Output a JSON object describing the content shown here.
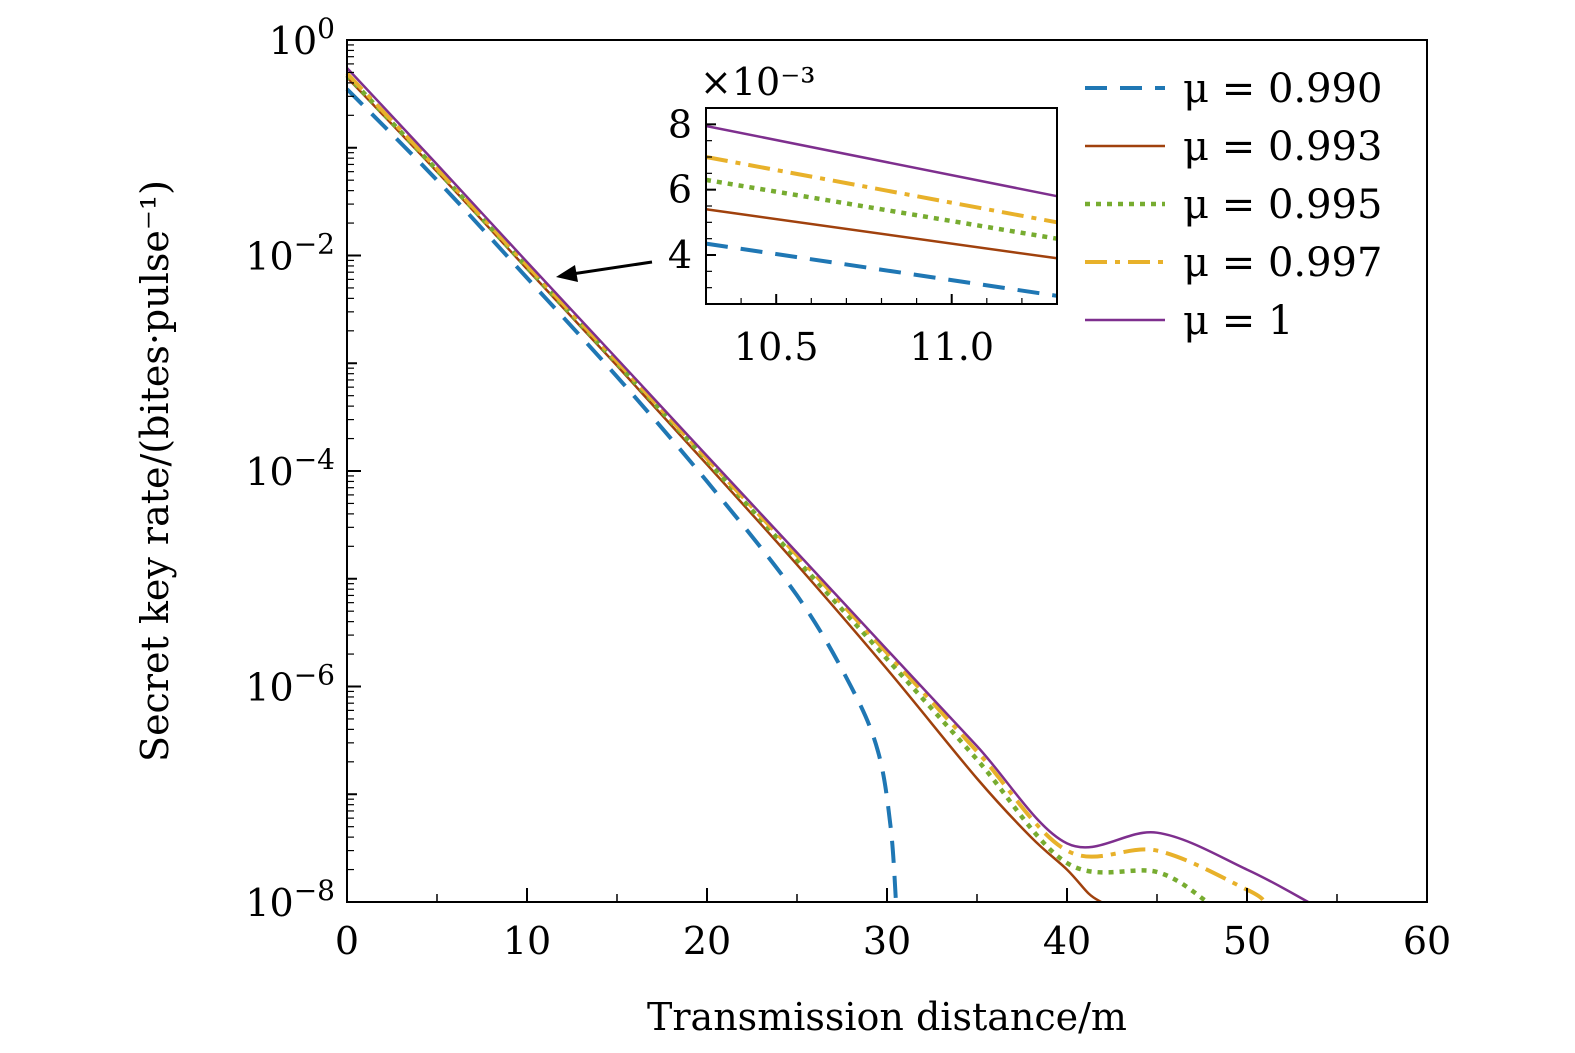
{
  "chart_data": {
    "type": "line",
    "xlabel": "Transmission distance/m",
    "ylabel": "Secret key rate/(bites·pulse⁻¹)",
    "xlim": [
      0,
      60
    ],
    "ylim": [
      1e-08,
      1
    ],
    "yscale": "log",
    "x_ticks": [
      "0",
      "10",
      "20",
      "30",
      "40",
      "50",
      "60"
    ],
    "y_ticks": [
      {
        "base": "10",
        "exp": "0"
      },
      {
        "base": "10",
        "exp": "−2"
      },
      {
        "base": "10",
        "exp": "−4"
      },
      {
        "base": "10",
        "exp": "−6"
      },
      {
        "base": "10",
        "exp": "−8"
      }
    ],
    "legend_position": "top-right",
    "series": [
      {
        "name": "μ = 0.990",
        "color": "#1f77b4",
        "dash": "dashed",
        "x": [
          0,
          5,
          10,
          15,
          20,
          25,
          28,
          29.5,
          30.2,
          30.5
        ],
        "y": [
          0.35,
          0.05,
          0.0062,
          0.00075,
          8e-05,
          7e-06,
          1e-06,
          2.5e-07,
          5e-08,
          1e-08
        ]
      },
      {
        "name": "μ = 0.993",
        "color": "#a0410d",
        "dash": "solid",
        "x": [
          0,
          5,
          10,
          15,
          20,
          25,
          30,
          35,
          38,
          40,
          41.2,
          41.9
        ],
        "y": [
          0.45,
          0.06,
          0.0075,
          0.00095,
          0.000115,
          1.35e-05,
          1.45e-06,
          1.4e-07,
          4e-08,
          2e-08,
          1.2e-08,
          1e-08
        ]
      },
      {
        "name": "μ = 0.995",
        "color": "#77ac30",
        "dash": "dotted",
        "x": [
          0,
          5,
          10,
          15,
          20,
          25,
          30,
          35,
          40,
          45,
          47.8
        ],
        "y": [
          0.47,
          0.062,
          0.0078,
          0.001,
          0.000125,
          1.5e-05,
          1.8e-06,
          2.1e-07,
          2.3e-08,
          1.9e-08,
          1e-08
        ]
      },
      {
        "name": "μ = 0.997",
        "color": "#e8b12a",
        "dash": "dashdot",
        "x": [
          0,
          5,
          10,
          15,
          20,
          25,
          30,
          35,
          40,
          45,
          50,
          51
        ],
        "y": [
          0.49,
          0.064,
          0.0081,
          0.00104,
          0.00013,
          1.65e-05,
          2.05e-06,
          2.5e-07,
          3e-08,
          3e-08,
          1.3e-08,
          1e-08
        ]
      },
      {
        "name": "μ = 1",
        "color": "#7e2f8e",
        "dash": "solid",
        "x": [
          0,
          5,
          10,
          15,
          20,
          25,
          30,
          35,
          40,
          45,
          50,
          53.4
        ],
        "y": [
          0.55,
          0.07,
          0.0087,
          0.0011,
          0.000138,
          1.75e-05,
          2.2e-06,
          2.8e-07,
          3.5e-08,
          4.4e-08,
          2e-08,
          1e-08
        ]
      }
    ],
    "inset": {
      "multiplier": "×10⁻³",
      "xlim": [
        10.3,
        11.3
      ],
      "ylim": [
        2.5,
        8.5
      ],
      "x_ticks": [
        "10.5",
        "11.0"
      ],
      "y_ticks": [
        "4",
        "6",
        "8"
      ],
      "series": [
        {
          "name": "μ = 0.990",
          "x": [
            10.3,
            11.3
          ],
          "y": [
            4.35,
            2.75
          ]
        },
        {
          "name": "μ = 0.993",
          "x": [
            10.3,
            11.3
          ],
          "y": [
            5.4,
            3.9
          ]
        },
        {
          "name": "μ = 0.995",
          "x": [
            10.3,
            11.3
          ],
          "y": [
            6.3,
            4.5
          ]
        },
        {
          "name": "μ = 0.997",
          "x": [
            10.3,
            11.3
          ],
          "y": [
            7.0,
            5.0
          ]
        },
        {
          "name": "μ = 1",
          "x": [
            10.3,
            11.3
          ],
          "y": [
            7.95,
            5.8
          ]
        }
      ]
    }
  }
}
